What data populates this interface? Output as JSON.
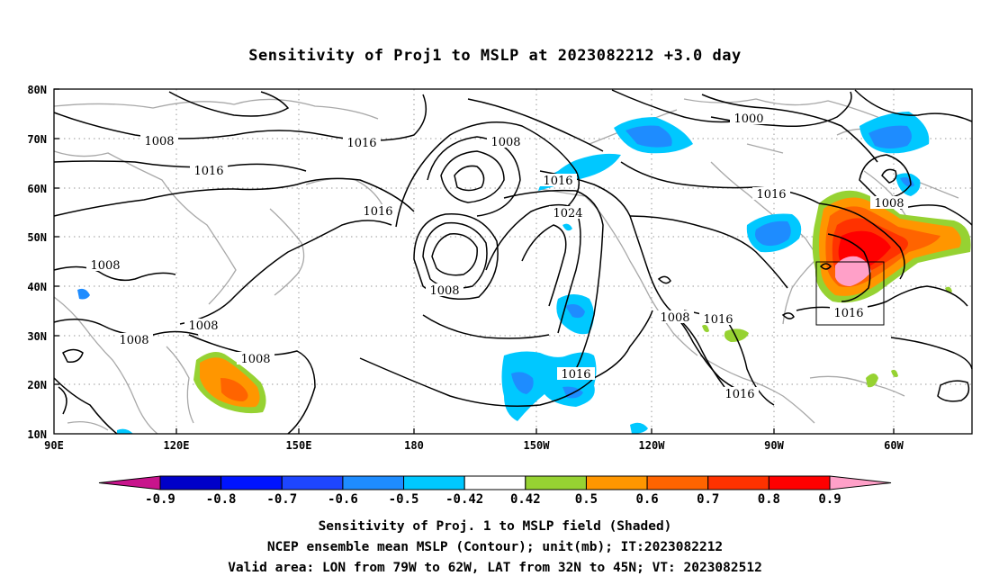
{
  "title": "Sensitivity of Proj1 to MSLP at 2023082212 +3.0 day",
  "axes": {
    "x_ticks": [
      "90E",
      "120E",
      "150E",
      "180",
      "150W",
      "120W",
      "90W",
      "60W"
    ],
    "y_ticks": [
      "80N",
      "70N",
      "60N",
      "50N",
      "40N",
      "30N",
      "20N",
      "10N"
    ]
  },
  "contour_labels": [
    "1008",
    "1016",
    "1000",
    "1008",
    "1016",
    "1016",
    "1016",
    "1024",
    "1008",
    "1016",
    "1008",
    "1008",
    "1008",
    "1008",
    "1008",
    "1016",
    "1016",
    "1008",
    "1016",
    "1016"
  ],
  "colorbar": {
    "labels": [
      "-0.9",
      "-0.8",
      "-0.7",
      "-0.6",
      "-0.5",
      "-0.42",
      "0.42",
      "0.5",
      "0.6",
      "0.7",
      "0.8",
      "0.9"
    ],
    "colors": [
      "#c8148c",
      "#0000c8",
      "#0014ff",
      "#1e46ff",
      "#1e8cff",
      "#00c8ff",
      "#ffffff",
      "#96d232",
      "#ff9600",
      "#ff6400",
      "#ff3200",
      "#ff0000",
      "#ffa0c8"
    ]
  },
  "captions": [
    "Sensitivity of Proj. 1 to MSLP field (Shaded)",
    "NCEP ensemble mean MSLP (Contour); unit(mb); IT:2023082212",
    "Valid area: LON from 79W to 62W, LAT from 32N to 45N; VT: 2023082512"
  ]
}
